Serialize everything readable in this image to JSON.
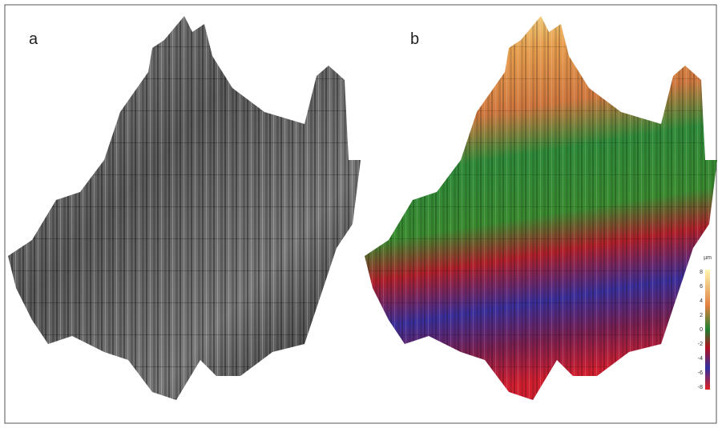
{
  "panels": [
    {
      "label": "a"
    },
    {
      "label": "b"
    }
  ],
  "colorbar": {
    "unit": "µm",
    "ticks": [
      8,
      6,
      4,
      2,
      0,
      -2,
      -4,
      -6,
      -8
    ]
  }
}
